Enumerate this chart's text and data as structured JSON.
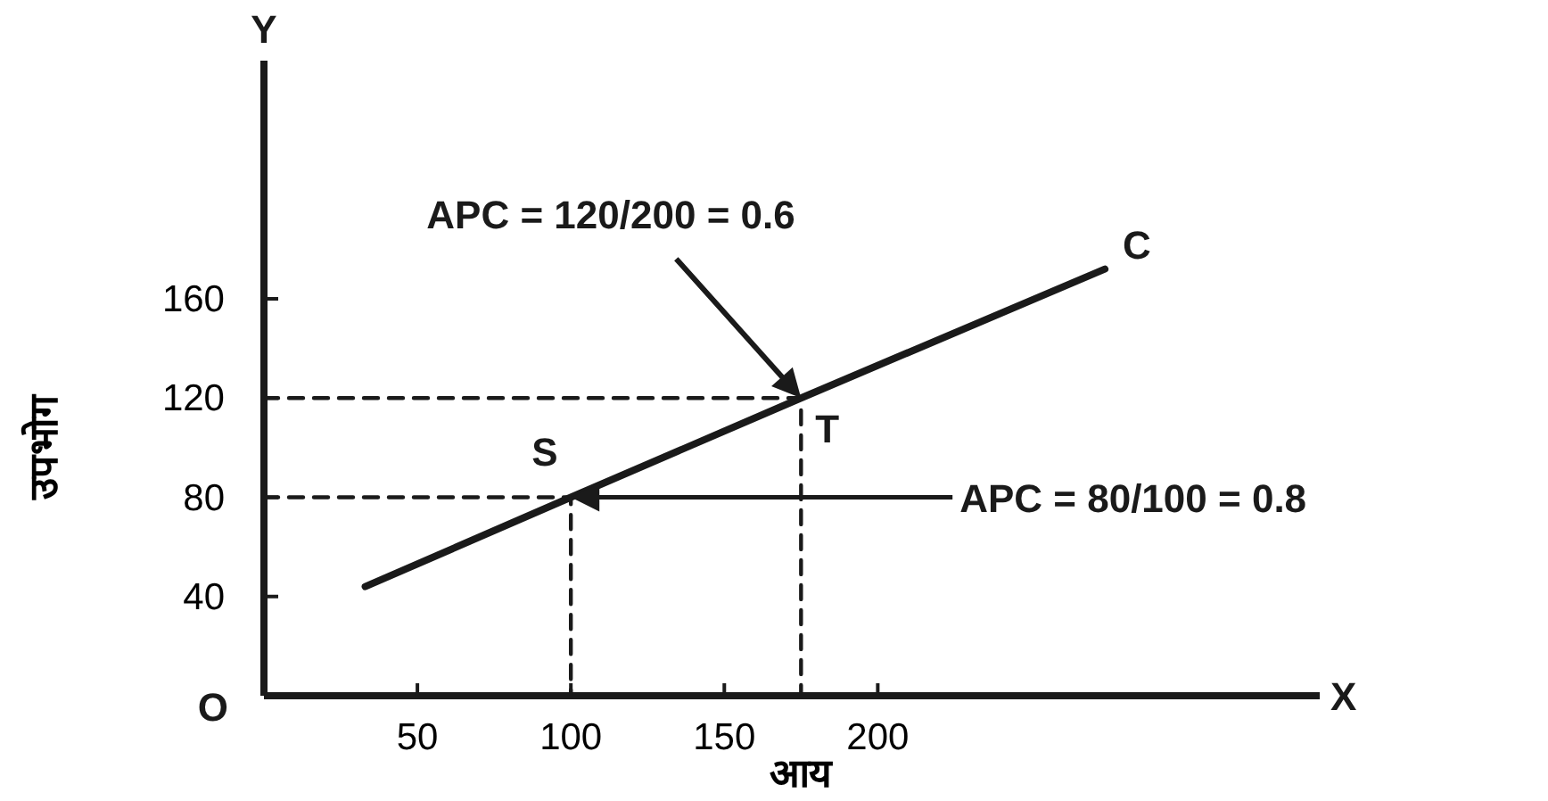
{
  "chart_data": {
    "type": "line",
    "xlabel": "आय",
    "ylabel": "उपभोग",
    "xlim": [
      0,
      344
    ],
    "ylim": [
      0,
      256
    ],
    "xticks": [
      50,
      100,
      150,
      200
    ],
    "yticks": [
      40,
      80,
      120,
      160
    ],
    "grid": false,
    "marker": "none",
    "series": [
      {
        "color": "#1a1a1a",
        "x": [
          33,
          100,
          175,
          274
        ],
        "values": [
          44,
          80,
          120,
          172
        ],
        "line_style": "solid"
      },
      {
        "color": "#1a1a1a",
        "x": [
          0,
          100,
          100
        ],
        "values": [
          80,
          80,
          0
        ],
        "line_style": "dashed"
      },
      {
        "color": "#1a1a1a",
        "x": [
          0,
          175,
          175
        ],
        "values": [
          120,
          120,
          0
        ],
        "line_style": "dashed"
      }
    ],
    "annotations": [
      "APC = 120/200 = 0.6",
      "APC = 80/100 = 0.8",
      {
        "text": "S",
        "x": 100,
        "y": 80
      },
      {
        "text": "T",
        "x": 175,
        "y": 120
      },
      {
        "text": "C",
        "x": 274,
        "y": 172
      },
      "O",
      "X",
      "Y"
    ]
  }
}
